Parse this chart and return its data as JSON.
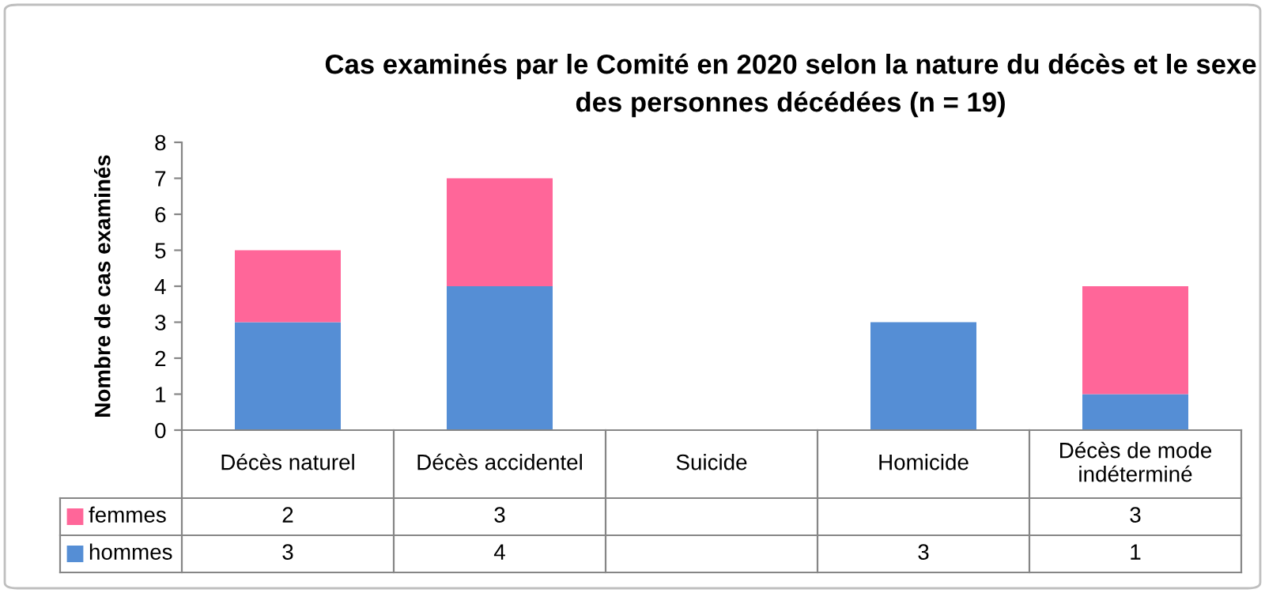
{
  "chart_data": {
    "type": "bar",
    "stacked": true,
    "title": "Cas examinés par le Comité en 2020 selon la nature du décès et le sexe des personnes décédées (n = 19)",
    "ylabel": "Nombre de cas examinés",
    "categories": [
      "Décès naturel",
      "Décès accidentel",
      "Suicide",
      "Homicide",
      "Décès de mode indéterminé"
    ],
    "series": [
      {
        "name": "hommes",
        "color": "#558ed5",
        "values": [
          3,
          4,
          null,
          3,
          1
        ]
      },
      {
        "name": "femmes",
        "color": "#ff6699",
        "values": [
          2,
          3,
          null,
          null,
          3
        ]
      }
    ],
    "ylim": [
      0,
      8
    ],
    "yticks": [
      0,
      1,
      2,
      3,
      4,
      5,
      6,
      7,
      8
    ],
    "grid": false,
    "data_labels": true,
    "legend": "bottom"
  }
}
